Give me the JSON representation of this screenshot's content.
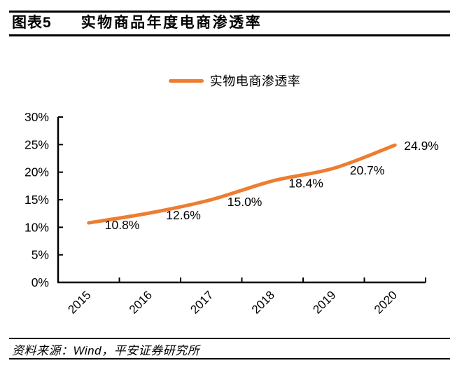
{
  "header": {
    "tag": "图表5",
    "title": "实物商品年度电商渗透率"
  },
  "legend": {
    "label": "实物电商渗透率"
  },
  "chart_data": {
    "type": "line",
    "title": "实物商品年度电商渗透率",
    "categories": [
      "2015",
      "2016",
      "2017",
      "2018",
      "2019",
      "2020"
    ],
    "series": [
      {
        "name": "实物电商渗透率",
        "values": [
          10.8,
          12.6,
          15.0,
          18.4,
          20.7,
          24.9
        ]
      }
    ],
    "data_labels": [
      "10.8%",
      "12.6%",
      "15.0%",
      "18.4%",
      "20.7%",
      "24.9%"
    ],
    "xlabel": "",
    "ylabel": "",
    "ylim": [
      0,
      30
    ],
    "ytick_step": 5,
    "ytick_labels": [
      "0%",
      "5%",
      "10%",
      "15%",
      "20%",
      "25%",
      "30%"
    ],
    "grid": false,
    "legend_position": "top-center",
    "line_color": "#ED7D31",
    "axis_color": "#000000",
    "smooth": true
  },
  "source": {
    "text": "资料来源：Wind，平安证券研究所"
  }
}
